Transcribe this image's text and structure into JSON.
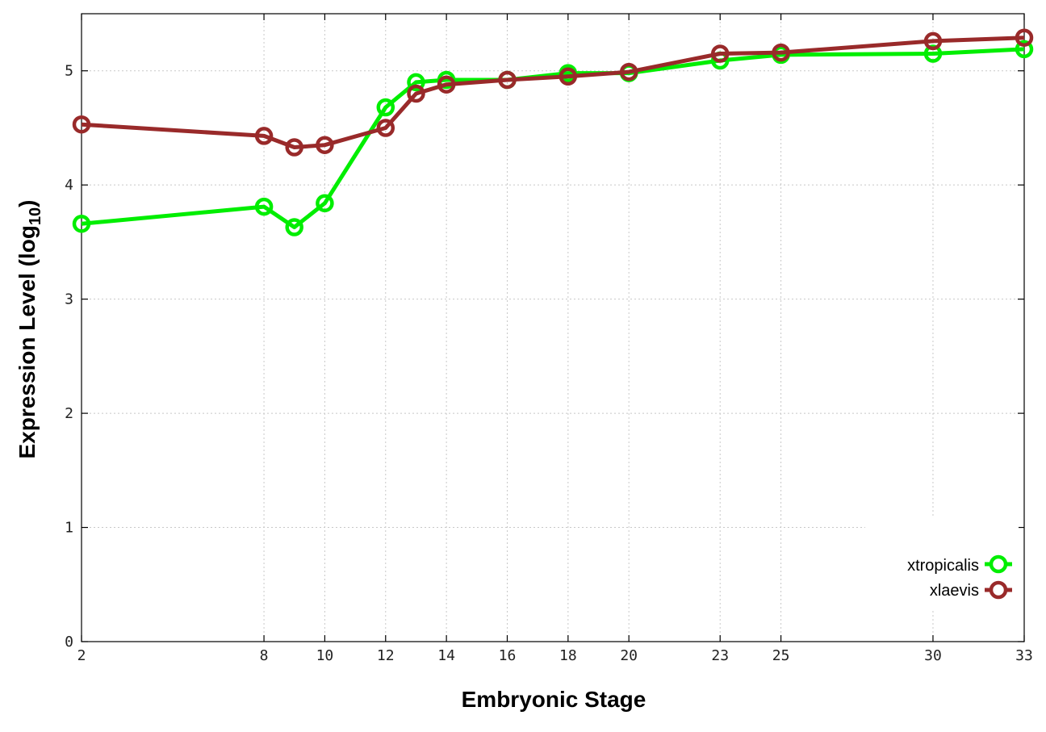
{
  "chart_data": {
    "type": "line",
    "xlabel": "Embryonic Stage",
    "ylabel": "Expression Level (log",
    "ylabel_sub": "10",
    "ylabel_close": ")",
    "xlim": [
      2,
      33
    ],
    "ylim": [
      0,
      5.5
    ],
    "x_ticks": [
      2,
      8,
      10,
      12,
      14,
      16,
      18,
      20,
      23,
      25,
      30,
      33
    ],
    "x_tick_labels": [
      "2",
      "8",
      "10",
      "12",
      "14",
      "16",
      "18",
      "20",
      "23",
      "25",
      "30",
      "33"
    ],
    "y_ticks": [
      0,
      1,
      2,
      3,
      4,
      5
    ],
    "y_tick_labels": [
      "0",
      "1",
      "2",
      "3",
      "4",
      "5"
    ],
    "grid": true,
    "legend_position": "bottom-right",
    "series": [
      {
        "name": "xtropicalis",
        "color": "#00ee00",
        "x": [
          2,
          8,
          9,
          10,
          12,
          13,
          14,
          16,
          18,
          20,
          23,
          25,
          30,
          33
        ],
        "values": [
          3.66,
          3.81,
          3.63,
          3.84,
          4.68,
          4.9,
          4.92,
          4.92,
          4.98,
          4.98,
          5.09,
          5.14,
          5.15,
          5.19
        ]
      },
      {
        "name": "xlaevis",
        "color": "#992a2a",
        "x": [
          2,
          8,
          9,
          10,
          12,
          13,
          14,
          16,
          18,
          20,
          23,
          25,
          30,
          33
        ],
        "values": [
          4.53,
          4.43,
          4.33,
          4.35,
          4.5,
          4.8,
          4.88,
          4.92,
          4.95,
          4.99,
          5.15,
          5.16,
          5.26,
          5.29
        ]
      }
    ]
  }
}
